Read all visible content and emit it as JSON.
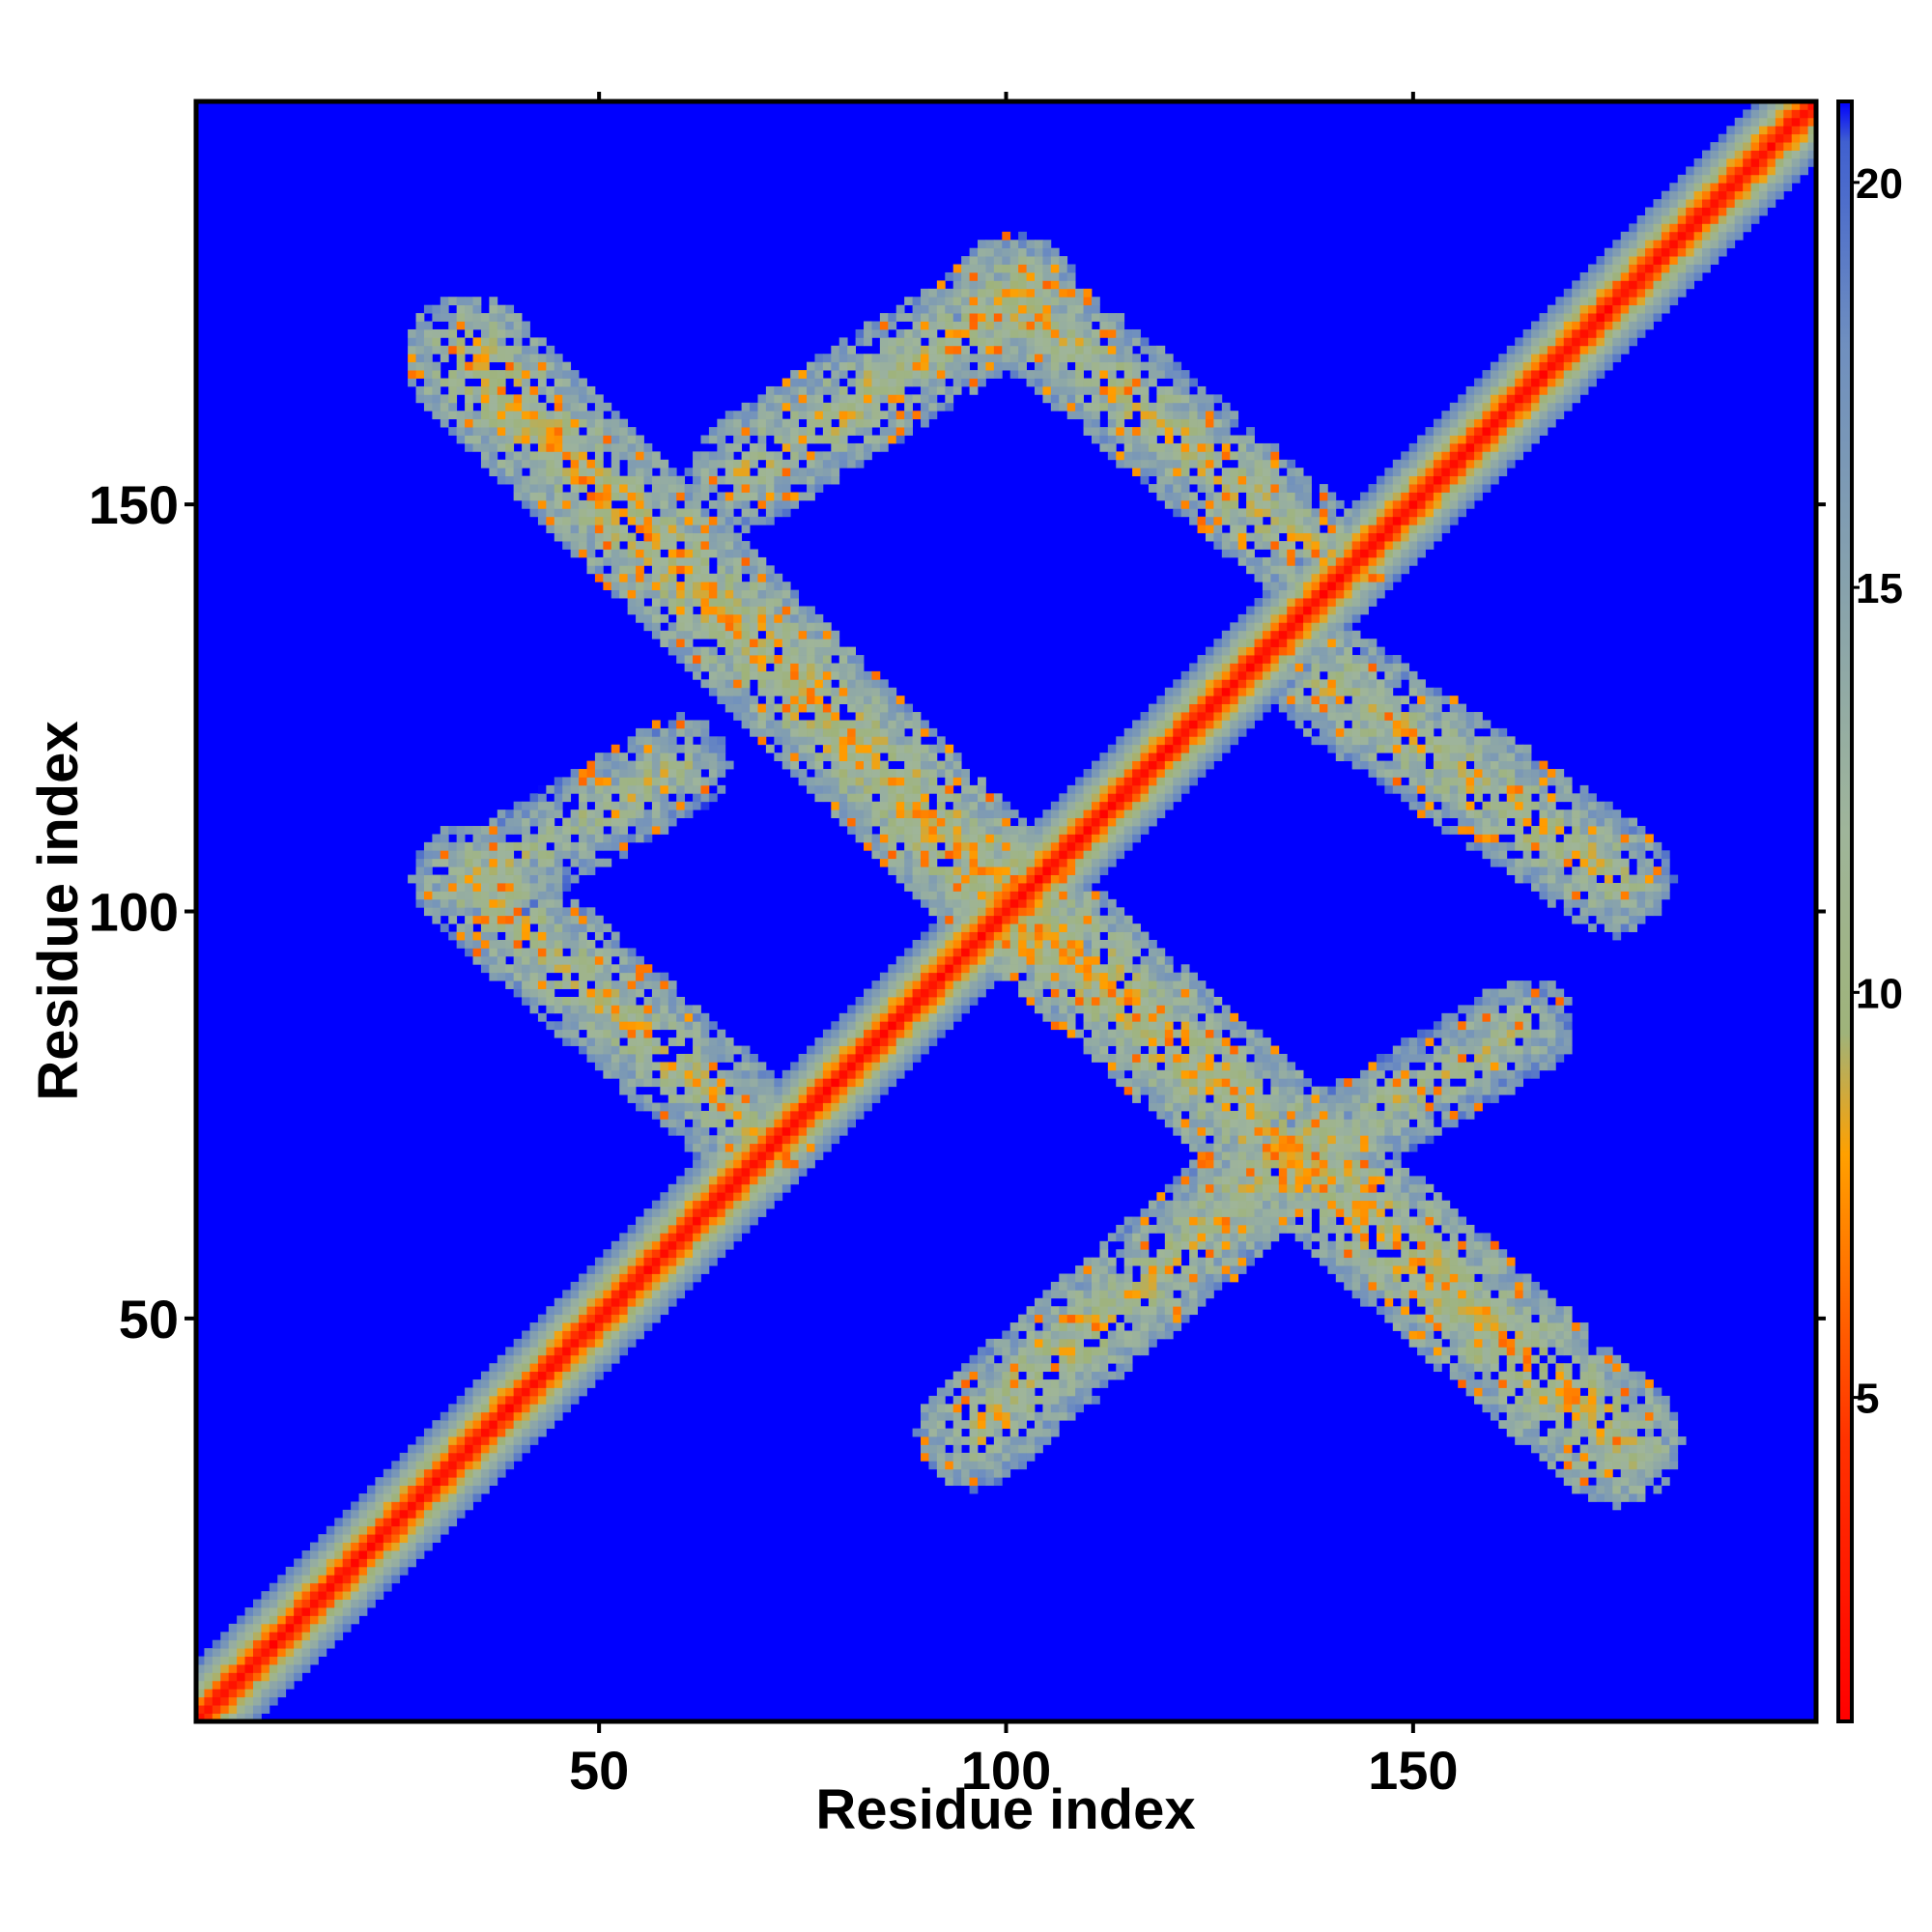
{
  "chart_data": {
    "type": "heatmap",
    "title": "",
    "xlabel": "Residue index",
    "ylabel": "Residue index",
    "xlim": [
      1,
      199
    ],
    "ylim": [
      1,
      199
    ],
    "grid": false,
    "x_ticks": [
      50,
      100,
      150
    ],
    "y_ticks": [
      50,
      100,
      150
    ],
    "colorbar": {
      "range": [
        1,
        21
      ],
      "ticks": [
        5,
        10,
        15,
        20
      ],
      "stops": [
        {
          "value": 1,
          "color": "#ff0000"
        },
        {
          "value": 4.5,
          "color": "#ff3300"
        },
        {
          "value": 8,
          "color": "#ffa000"
        },
        {
          "value": 9.5,
          "color": "#9fb37a"
        },
        {
          "value": 12,
          "color": "#9fb59a"
        },
        {
          "value": 18,
          "color": "#6f8fbf"
        },
        {
          "value": 20.5,
          "color": "#4060d0"
        },
        {
          "value": 21,
          "color": "#0000ff"
        }
      ]
    },
    "background_value": 21,
    "background_color": "#0000ff",
    "features": [
      {
        "name": "main diagonal",
        "from": [
          1,
          1
        ],
        "to": [
          199,
          199
        ],
        "halfwidth": 5,
        "core_value": 1
      },
      {
        "name": "anti-diagonal contact band A",
        "from": [
          34,
          168
        ],
        "to": [
          104,
          98
        ],
        "halfwidth": 8,
        "core_value": 9
      },
      {
        "name": "anti-diagonal contact band B",
        "from": [
          100,
          102
        ],
        "to": [
          175,
          35
        ],
        "halfwidth": 8,
        "core_value": 9
      },
      {
        "name": "loop band upper-left",
        "from": [
          34,
          104
        ],
        "to": [
          70,
          72
        ],
        "halfwidth": 7,
        "core_value": 10
      },
      {
        "name": "loop band upper",
        "from": [
          68,
          154
        ],
        "to": [
          102,
          176
        ],
        "halfwidth": 7,
        "core_value": 10
      },
      {
        "name": "loop band upper-right",
        "from": [
          100,
          176
        ],
        "to": [
          140,
          142
        ],
        "halfwidth": 7,
        "core_value": 10
      },
      {
        "name": "loop band right",
        "from": [
          140,
          128
        ],
        "to": [
          175,
          104
        ],
        "halfwidth": 7,
        "core_value": 10
      },
      {
        "name": "loop band lower",
        "from": [
          96,
          36
        ],
        "to": [
          130,
          66
        ],
        "halfwidth": 7,
        "core_value": 10
      },
      {
        "name": "loop band left",
        "from": [
          60,
          118
        ],
        "to": [
          36,
          104
        ],
        "halfwidth": 6,
        "core_value": 11
      },
      {
        "name": "loop band lower-right",
        "from": [
          130,
          66
        ],
        "to": [
          164,
          86
        ],
        "halfwidth": 6,
        "core_value": 11
      }
    ]
  }
}
